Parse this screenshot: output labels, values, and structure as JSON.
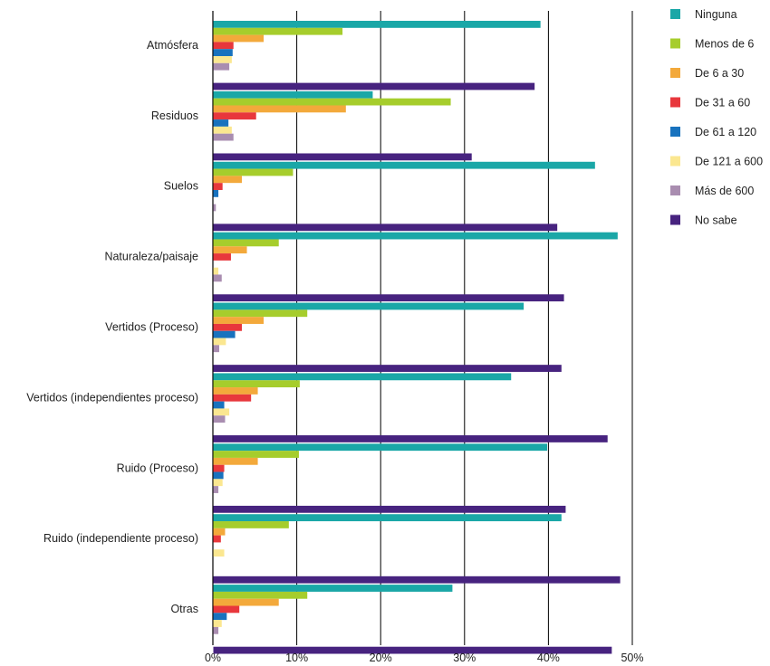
{
  "chart_data": {
    "type": "bar",
    "orientation": "horizontal",
    "title": "",
    "xlabel": "",
    "ylabel": "",
    "xlim": [
      0,
      50
    ],
    "x_ticks": [
      "0%",
      "10%",
      "20%",
      "30%",
      "40%",
      "50%"
    ],
    "grid": "vertical lines at ticks",
    "legend_position": "top-right",
    "categories": [
      "Atmósfera",
      "Residuos",
      "Suelos",
      "Naturaleza/paisaje",
      "Vertidos (Proceso)",
      "Vertidos (independientes proceso)",
      "Ruido (Proceso)",
      "Ruido (independiente proceso)",
      "Otras"
    ],
    "series": [
      {
        "name": "Ninguna",
        "color": "#1aa7a7",
        "values": [
          39.0,
          19.0,
          45.5,
          48.2,
          37.0,
          35.5,
          39.8,
          41.5,
          28.5
        ]
      },
      {
        "name": "Menos de 6",
        "color": "#a6cd2c",
        "values": [
          15.4,
          28.3,
          9.5,
          7.8,
          11.2,
          10.3,
          10.2,
          9.0,
          11.2
        ]
      },
      {
        "name": "De 6 a 30",
        "color": "#f3a93b",
        "values": [
          6.0,
          15.8,
          3.4,
          4.0,
          6.0,
          5.3,
          5.3,
          1.4,
          7.8
        ]
      },
      {
        "name": "De 31 a 60",
        "color": "#e8373c",
        "values": [
          2.4,
          5.1,
          1.1,
          2.1,
          3.4,
          4.5,
          1.3,
          0.9,
          3.1
        ]
      },
      {
        "name": "De 61 a 120",
        "color": "#1872be",
        "values": [
          2.3,
          1.8,
          0.6,
          0.0,
          2.6,
          1.3,
          1.2,
          0.0,
          1.6
        ]
      },
      {
        "name": "De 121 a 600",
        "color": "#fbe790",
        "values": [
          2.2,
          2.2,
          0.0,
          0.6,
          1.5,
          1.9,
          1.1,
          1.3,
          1.0
        ]
      },
      {
        "name": "Más de 600",
        "color": "#a98db0",
        "values": [
          1.9,
          2.4,
          0.3,
          1.0,
          0.7,
          1.4,
          0.6,
          0.0,
          0.6
        ]
      },
      {
        "name": "No sabe",
        "color": "#47237f",
        "values": [
          38.3,
          30.8,
          41.0,
          41.8,
          41.5,
          47.0,
          42.0,
          48.5,
          47.5
        ]
      }
    ]
  }
}
